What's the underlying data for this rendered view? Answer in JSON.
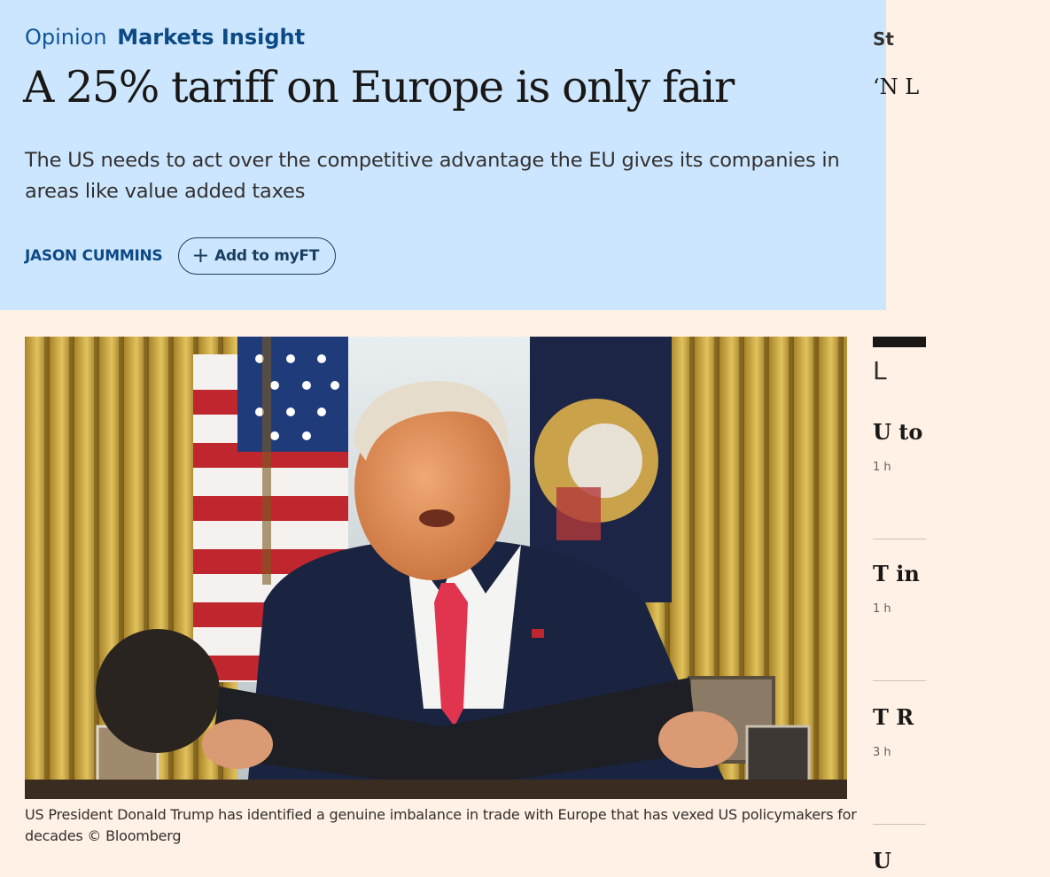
{
  "article": {
    "genre": "Opinion",
    "topic": "Markets Insight",
    "headline": "A 25% tariff on Europe is only fair",
    "standfirst": "The US needs to act over the competitive advantage the EU gives its companies in areas like value added taxes",
    "author": "JASON CUMMINS",
    "myft_label": "Add to myFT",
    "image": {
      "caption": "US President Donald Trump has identified a genuine imbalance in trade with Europe that has vexed US policymakers for decades © Bloomberg"
    }
  },
  "right_rail": {
    "heading": "St",
    "quote": "‘N L",
    "section": "L",
    "items": [
      {
        "title": "U to",
        "time": "1 h"
      },
      {
        "title": "T in",
        "time": "1 h"
      },
      {
        "title": "T R",
        "time": "3 h"
      },
      {
        "title": "U",
        "time": ""
      }
    ]
  },
  "colors": {
    "header_background": "#cce6ff",
    "page_background": "#fff1e5",
    "topic_blue": "#0d4a85",
    "headline_black": "#1a1817"
  },
  "icons": {
    "myft_button": "plus-icon"
  }
}
